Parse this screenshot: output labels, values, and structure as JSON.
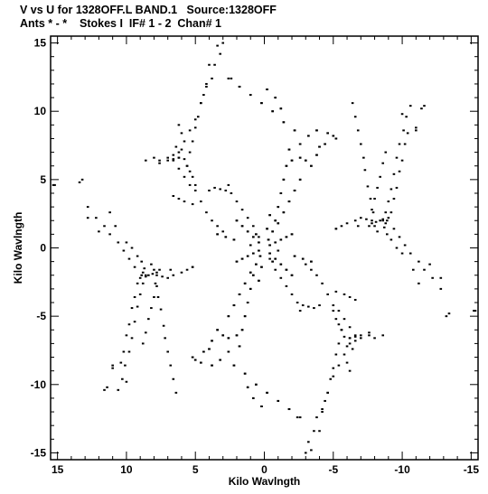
{
  "header": {
    "line1": "V vs U for 1328OFF.L BAND.1   Source:1328OFF",
    "line2": "Ants * - *    Stokes I  IF# 1 - 2  Chan# 1"
  },
  "colors": {
    "background": "#ffffff",
    "points": "#000000",
    "frame": "#000000"
  },
  "chart_data": {
    "type": "scatter",
    "xlabel": "Kilo Wavlngth",
    "ylabel": "Kilo Wavlngth",
    "xlim": [
      15.5,
      -15.5
    ],
    "ylim": [
      -15.5,
      15.5
    ],
    "xticks": [
      15,
      10,
      5,
      0,
      -5,
      -10,
      -15
    ],
    "yticks": [
      15,
      10,
      5,
      0,
      -5,
      -10,
      -15
    ],
    "xtick_labels": [
      "15",
      "10",
      "5",
      "0",
      "-5",
      "-10",
      "-15"
    ],
    "ytick_labels": [
      "15",
      "10",
      "5",
      "0",
      "-5",
      "-10",
      "-15"
    ],
    "grid": false,
    "symmetric": true,
    "series": [
      {
        "points": [
          [
            15.3,
            4.6
          ],
          [
            13.2,
            5.0
          ],
          [
            12.8,
            2.2
          ],
          [
            12.0,
            1.2
          ],
          [
            11.2,
            2.6
          ],
          [
            10.8,
            1.6
          ],
          [
            10.0,
            0.4
          ],
          [
            9.6,
            0.0
          ],
          [
            9.2,
            -0.6
          ],
          [
            8.9,
            -1.0
          ],
          [
            8.7,
            -1.5
          ],
          [
            8.9,
            -2.0
          ],
          [
            8.6,
            -2.1
          ],
          [
            8.4,
            -2.0
          ],
          [
            8.1,
            -1.9
          ],
          [
            7.8,
            -1.8
          ],
          [
            7.6,
            -1.6
          ],
          [
            6.8,
            -1.6
          ],
          [
            5.2,
            -1.4
          ],
          [
            8.8,
            -2.6
          ],
          [
            9.0,
            -3.4
          ],
          [
            9.2,
            -4.3
          ],
          [
            9.4,
            -5.4
          ],
          [
            9.6,
            -6.6
          ],
          [
            9.8,
            -7.6
          ],
          [
            10.1,
            -8.6
          ],
          [
            10.3,
            -9.6
          ],
          [
            10.6,
            -10.4
          ],
          [
            7.9,
            -2.6
          ],
          [
            7.7,
            -3.6
          ],
          [
            7.5,
            -4.5
          ],
          [
            7.3,
            -5.7
          ],
          [
            7.2,
            -6.6
          ],
          [
            7.0,
            -7.6
          ],
          [
            6.8,
            -8.6
          ],
          [
            6.6,
            -9.6
          ],
          [
            6.4,
            -10.6
          ],
          [
            11.0,
            -8.8
          ],
          [
            11.4,
            -10.2
          ],
          [
            7.6,
            6.2
          ],
          [
            7.0,
            6.4
          ],
          [
            6.6,
            6.5
          ],
          [
            6.2,
            6.6
          ],
          [
            5.8,
            6.5
          ],
          [
            5.6,
            6.0
          ],
          [
            5.4,
            5.6
          ],
          [
            5.2,
            5.2
          ],
          [
            5.0,
            4.6
          ],
          [
            6.2,
            7.0
          ],
          [
            5.8,
            7.8
          ],
          [
            5.4,
            8.6
          ],
          [
            5.0,
            9.4
          ],
          [
            4.6,
            10.6
          ],
          [
            4.2,
            11.8
          ],
          [
            3.8,
            12.4
          ],
          [
            3.6,
            13.4
          ],
          [
            3.2,
            14.2
          ],
          [
            3.0,
            15.0
          ],
          [
            4.0,
            4.2
          ],
          [
            3.6,
            4.4
          ],
          [
            3.2,
            4.3
          ],
          [
            2.8,
            4.2
          ],
          [
            2.6,
            4.6
          ],
          [
            2.4,
            4.0
          ],
          [
            2.0,
            3.4
          ],
          [
            1.6,
            2.8
          ],
          [
            1.2,
            2.2
          ],
          [
            0.8,
            1.6
          ],
          [
            0.4,
            0.8
          ],
          [
            2.6,
            12.4
          ],
          [
            1.8,
            11.8
          ],
          [
            1.0,
            11.2
          ],
          [
            0.2,
            10.6
          ],
          [
            -0.6,
            10.0
          ],
          [
            -1.4,
            9.2
          ],
          [
            -2.2,
            8.6
          ],
          [
            -2.6,
            7.6
          ],
          [
            -3.2,
            8.2
          ],
          [
            -3.8,
            8.6
          ],
          [
            -4.6,
            8.4
          ],
          [
            -5.0,
            8.2
          ],
          [
            -5.2,
            8.0
          ],
          [
            -0.2,
            11.6
          ],
          [
            -0.8,
            11.0
          ],
          [
            -1.2,
            10.2
          ],
          [
            -1.8,
            7.2
          ],
          [
            -1.6,
            6.0
          ],
          [
            -1.4,
            5.0
          ],
          [
            -1.2,
            4.0
          ],
          [
            -1.0,
            3.0
          ],
          [
            -0.8,
            2.0
          ],
          [
            -0.6,
            1.2
          ],
          [
            -0.3,
            0.6
          ],
          [
            -2.0,
            6.4
          ],
          [
            -2.6,
            6.6
          ],
          [
            -3.0,
            6.4
          ],
          [
            -3.4,
            6.0
          ],
          [
            -3.8,
            6.8
          ],
          [
            -4.0,
            7.4
          ],
          [
            -4.4,
            7.6
          ],
          [
            -5.2,
            1.4
          ],
          [
            -5.6,
            1.6
          ],
          [
            -6.0,
            1.8
          ],
          [
            -6.6,
            2.0
          ],
          [
            -7.0,
            2.2
          ],
          [
            -7.4,
            2.1
          ],
          [
            -7.8,
            2.0
          ],
          [
            -8.0,
            1.6
          ],
          [
            -8.2,
            1.2
          ],
          [
            -8.6,
            2.0
          ],
          [
            -8.8,
            1.8
          ],
          [
            -9.0,
            2.2
          ],
          [
            -7.8,
            2.8
          ],
          [
            -8.0,
            3.6
          ],
          [
            -8.2,
            4.4
          ],
          [
            -8.4,
            5.2
          ],
          [
            -8.6,
            6.2
          ],
          [
            -8.8,
            7.0
          ],
          [
            -9.2,
            2.6
          ],
          [
            -9.4,
            3.6
          ],
          [
            -9.6,
            4.4
          ],
          [
            -9.8,
            5.6
          ],
          [
            -10.0,
            6.4
          ],
          [
            -10.2,
            7.6
          ],
          [
            -10.4,
            8.4
          ],
          [
            -9.4,
            1.4
          ],
          [
            -9.8,
            0.8
          ],
          [
            -10.2,
            0.2
          ],
          [
            -10.6,
            -0.4
          ],
          [
            -11.2,
            -1.0
          ],
          [
            -11.6,
            -1.6
          ],
          [
            -12.2,
            -2.2
          ],
          [
            -12.8,
            -3.0
          ],
          [
            -13.4,
            -4.8
          ],
          [
            -15.2,
            -4.6
          ],
          [
            -10.0,
            9.8
          ],
          [
            -11.0,
            8.6
          ],
          [
            -11.6,
            10.4
          ],
          [
            -3.0,
            -1.2
          ],
          [
            -3.4,
            -1.6
          ],
          [
            -3.8,
            -2.0
          ],
          [
            -4.2,
            -2.6
          ],
          [
            -4.6,
            -3.4
          ],
          [
            -5.0,
            -4.2
          ],
          [
            -5.4,
            -4.6
          ],
          [
            -5.8,
            -5.2
          ],
          [
            -6.2,
            -5.8
          ],
          [
            -6.6,
            -6.4
          ],
          [
            -5.2,
            -3.2
          ],
          [
            -5.8,
            -3.4
          ],
          [
            -6.2,
            -3.6
          ],
          [
            -6.6,
            -3.8
          ],
          [
            -5.6,
            -6.0
          ],
          [
            -5.4,
            -7.0
          ],
          [
            -5.2,
            -7.8
          ],
          [
            -5.0,
            -8.8
          ],
          [
            -4.8,
            -9.6
          ],
          [
            -4.6,
            -10.6
          ],
          [
            -4.4,
            -11.2
          ],
          [
            -4.2,
            -12.0
          ],
          [
            -4.0,
            -13.4
          ],
          [
            -3.4,
            -14.8
          ],
          [
            -6.2,
            -6.6
          ],
          [
            -6.0,
            -7.2
          ],
          [
            -6.4,
            -7.4
          ],
          [
            -6.0,
            -8.4
          ],
          [
            -6.2,
            -9.0
          ],
          [
            -6.6,
            -6.8
          ],
          [
            -7.0,
            -6.6
          ],
          [
            -7.6,
            -6.4
          ],
          [
            -8.0,
            -6.6
          ],
          [
            -8.6,
            -6.4
          ],
          [
            -2.4,
            -12.4
          ],
          [
            -1.8,
            -11.8
          ],
          [
            -1.0,
            -11.2
          ],
          [
            -0.2,
            -10.6
          ],
          [
            0.6,
            -10.0
          ],
          [
            1.4,
            -9.2
          ],
          [
            2.2,
            -8.6
          ],
          [
            2.6,
            -7.6
          ],
          [
            3.2,
            -8.2
          ],
          [
            3.8,
            -8.6
          ],
          [
            4.6,
            -8.4
          ],
          [
            5.0,
            -8.2
          ],
          [
            5.2,
            -8.0
          ],
          [
            1.8,
            -7.2
          ],
          [
            1.6,
            -6.0
          ],
          [
            1.4,
            -5.0
          ],
          [
            1.2,
            -4.0
          ],
          [
            1.0,
            -3.0
          ],
          [
            0.8,
            -2.0
          ],
          [
            0.6,
            -1.2
          ],
          [
            0.3,
            -0.6
          ],
          [
            2.0,
            -6.4
          ],
          [
            2.6,
            -6.6
          ],
          [
            3.0,
            -6.4
          ],
          [
            3.4,
            -6.0
          ],
          [
            3.8,
            -6.8
          ],
          [
            4.0,
            -7.4
          ],
          [
            4.4,
            -7.6
          ],
          [
            0.2,
            -11.6
          ],
          [
            0.8,
            -11.0
          ],
          [
            1.2,
            -10.2
          ],
          [
            -0.4,
            0.2
          ],
          [
            -0.8,
            0.4
          ],
          [
            -1.2,
            0.6
          ],
          [
            -1.6,
            0.8
          ],
          [
            -2.0,
            1.0
          ],
          [
            0.4,
            -0.2
          ],
          [
            0.8,
            -0.4
          ],
          [
            1.2,
            -0.6
          ],
          [
            1.6,
            -0.8
          ],
          [
            2.0,
            -1.0
          ],
          [
            -0.4,
            -0.4
          ],
          [
            -0.8,
            -0.8
          ],
          [
            -1.2,
            -1.2
          ],
          [
            -1.6,
            -1.6
          ],
          [
            -2.0,
            -2.0
          ],
          [
            0.4,
            0.4
          ],
          [
            0.8,
            0.8
          ],
          [
            1.2,
            1.2
          ],
          [
            1.6,
            1.6
          ],
          [
            2.0,
            2.0
          ],
          [
            -1.0,
            1.8
          ],
          [
            -1.4,
            2.6
          ],
          [
            -1.8,
            3.4
          ],
          [
            -2.2,
            4.2
          ],
          [
            -2.6,
            5.0
          ],
          [
            1.0,
            -1.8
          ],
          [
            1.4,
            -2.6
          ],
          [
            1.8,
            -3.4
          ],
          [
            2.2,
            -4.2
          ],
          [
            2.6,
            -5.0
          ],
          [
            -2.2,
            -0.6
          ],
          [
            -2.8,
            -0.8
          ],
          [
            -3.4,
            -1.0
          ],
          [
            2.2,
            0.6
          ],
          [
            2.8,
            0.8
          ],
          [
            3.4,
            1.0
          ],
          [
            -0.2,
            1.4
          ],
          [
            -0.4,
            2.4
          ],
          [
            0.2,
            -1.4
          ],
          [
            0.4,
            -2.4
          ],
          [
            -1.0,
            -0.2
          ],
          [
            1.0,
            0.2
          ],
          [
            -0.6,
            -1.0
          ],
          [
            0.6,
            1.0
          ]
        ]
      }
    ]
  }
}
